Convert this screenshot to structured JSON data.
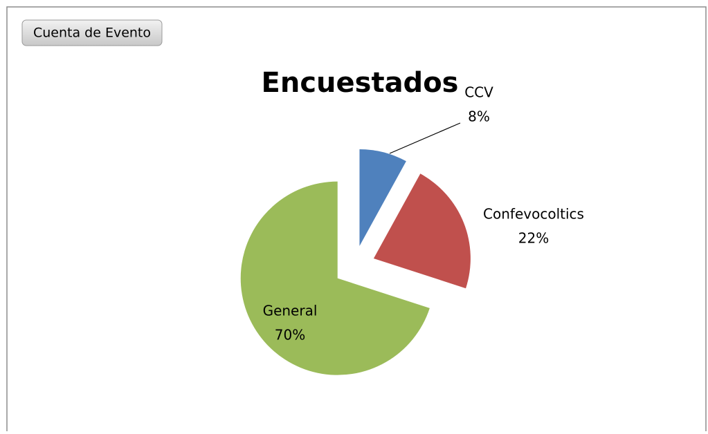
{
  "filter_button": "Cuenta de Evento",
  "chart_data": {
    "type": "pie",
    "title": "Encuestados",
    "categories": [
      "CCV",
      "Confevocoltics",
      "General"
    ],
    "values": [
      8,
      22,
      70
    ],
    "value_labels": [
      "8%",
      "22%",
      "70%"
    ],
    "colors": [
      "#4f81bd",
      "#c0504d",
      "#9bbb59"
    ]
  }
}
